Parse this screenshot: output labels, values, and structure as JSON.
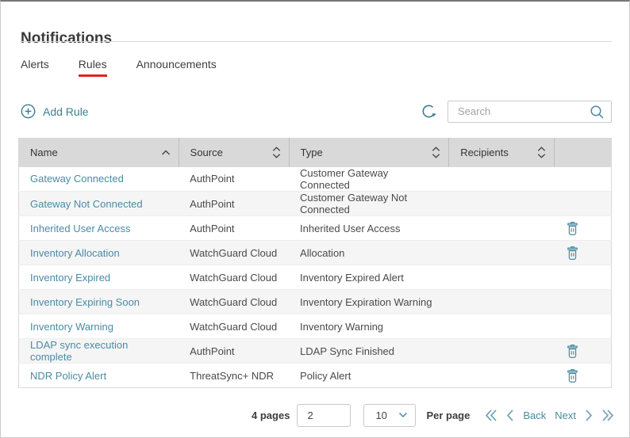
{
  "window": {
    "title": "Notifications"
  },
  "tabs": [
    {
      "label": "Alerts",
      "active": false
    },
    {
      "label": "Rules",
      "active": true
    },
    {
      "label": "Announcements",
      "active": false
    }
  ],
  "toolbar": {
    "add_rule_label": "Add Rule",
    "search_placeholder": "Search"
  },
  "table": {
    "columns": [
      {
        "label": "Name",
        "sort": "asc"
      },
      {
        "label": "Source",
        "sort": "both"
      },
      {
        "label": "Type",
        "sort": "both"
      },
      {
        "label": "Recipients",
        "sort": "both"
      },
      {
        "label": "",
        "sort": "none"
      }
    ],
    "rows": [
      {
        "name": "Gateway Connected",
        "source": "AuthPoint",
        "type": "Customer Gateway Connected",
        "recipients": "",
        "deletable": false
      },
      {
        "name": "Gateway Not Connected",
        "source": "AuthPoint",
        "type": "Customer Gateway Not Connected",
        "recipients": "",
        "deletable": false
      },
      {
        "name": "Inherited User Access",
        "source": "AuthPoint",
        "type": "Inherited User Access",
        "recipients": "",
        "deletable": true
      },
      {
        "name": "Inventory Allocation",
        "source": "WatchGuard Cloud",
        "type": "Allocation",
        "recipients": "",
        "deletable": true
      },
      {
        "name": "Inventory Expired",
        "source": "WatchGuard Cloud",
        "type": "Inventory Expired Alert",
        "recipients": "",
        "deletable": false
      },
      {
        "name": "Inventory Expiring Soon",
        "source": "WatchGuard Cloud",
        "type": "Inventory Expiration Warning",
        "recipients": "",
        "deletable": false
      },
      {
        "name": "Inventory Warning",
        "source": "WatchGuard Cloud",
        "type": "Inventory Warning",
        "recipients": "",
        "deletable": false
      },
      {
        "name": "LDAP sync execution complete",
        "source": "AuthPoint",
        "type": "LDAP Sync Finished",
        "recipients": "",
        "deletable": true
      },
      {
        "name": "NDR Policy Alert",
        "source": "ThreatSync+ NDR",
        "type": "Policy Alert",
        "recipients": "",
        "deletable": true
      }
    ]
  },
  "pagination": {
    "pages_label": "4 pages",
    "current_page": "2",
    "per_page_value": "10",
    "per_page_label": "Per page",
    "back_label": "Back",
    "next_label": "Next"
  },
  "icons": [
    "plus-circle-icon",
    "refresh-icon",
    "search-icon",
    "sort-asc-icon",
    "sort-icon",
    "trash-icon",
    "chevron-down-icon",
    "first-page-icon",
    "prev-page-icon",
    "next-page-icon",
    "last-page-icon"
  ],
  "colors": {
    "accent_teal": "#3d7f90",
    "link_teal": "#4a8ba4",
    "active_tab_underline": "#e2231a",
    "header_bg": "#d9d9d9",
    "row_alt_bg": "#f5f5f5",
    "pager_chevron": "#74a4b6"
  }
}
